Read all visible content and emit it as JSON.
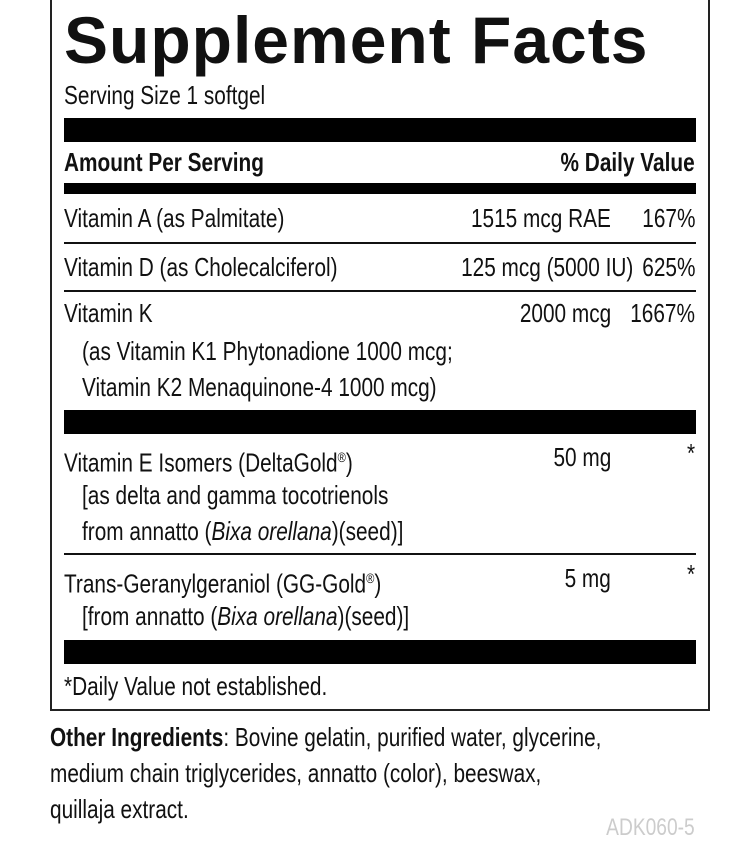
{
  "title": "Supplement Facts",
  "serving_size": "Serving Size 1 softgel",
  "header": {
    "amount": "Amount Per Serving",
    "dv": "% Daily Value"
  },
  "rows": [
    {
      "name": "Vitamin A (as Palmitate)",
      "amount": "1515 mcg RAE",
      "dv": "167%"
    },
    {
      "name": "Vitamin D (as Cholecalciferol)",
      "amount": "125 mcg (5000 IU)",
      "dv": "625%"
    },
    {
      "name": "Vitamin K",
      "amount": "2000 mcg",
      "dv": "1667%",
      "sub1": "(as Vitamin K1 Phytonadione 1000 mcg;",
      "sub2": "Vitamin K2 Menaquinone-4 1000 mcg)"
    },
    {
      "name": "Vitamin E Isomers (DeltaGold",
      "reg": "®",
      "name_end": ")",
      "amount": "50 mg",
      "dv": "*",
      "sub1": "[as delta and gamma tocotrienols",
      "sub2a": "from annatto (",
      "sub2i": "Bixa orellana",
      "sub2b": ")(seed)]"
    },
    {
      "name": "Trans-Geranylgeraniol (GG-Gold",
      "reg": "®",
      "name_end": ")",
      "amount": "5 mg",
      "dv": "*",
      "sub1a": "[from annatto (",
      "sub1i": "Bixa orellana",
      "sub1b": ")(seed)]"
    }
  ],
  "footnote": "*Daily Value not established.",
  "other_ingredients": {
    "label": "Other Ingredients",
    "line1": ": Bovine gelatin, purified water, glycerine,",
    "line2": "medium chain triglycerides, annatto (color), beeswax,",
    "line3": "quillaja extract."
  },
  "code": "ADK060-5"
}
